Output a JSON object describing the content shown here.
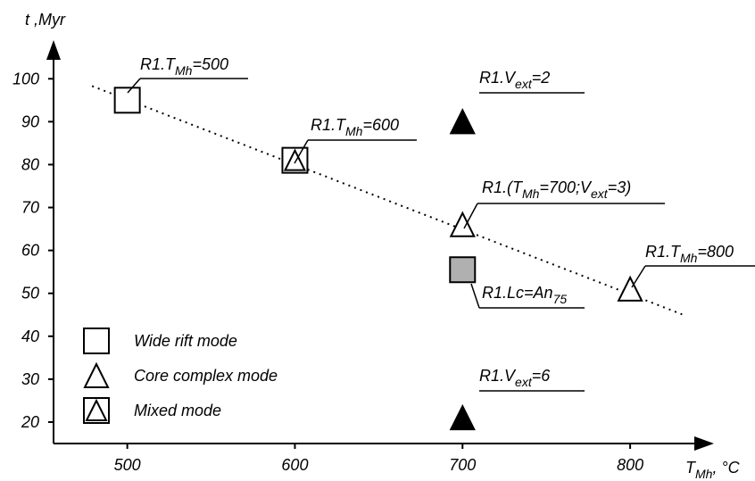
{
  "chart_data": {
    "type": "scatter",
    "y_label": "t ,Myr",
    "x_label": [
      {
        "text": "T"
      },
      {
        "text": "Mh",
        "sub": true
      },
      {
        "text": ", °C"
      }
    ],
    "xlim": [
      456,
      850
    ],
    "ylim": [
      15,
      109
    ],
    "xticks": [
      500,
      600,
      700,
      800
    ],
    "yticks": [
      20,
      30,
      40,
      50,
      60,
      70,
      80,
      90,
      100
    ],
    "series": [
      {
        "name": "Wide rift mode",
        "marker": "square",
        "x": [
          500
        ],
        "y": [
          95
        ]
      },
      {
        "name": "Core complex mode",
        "marker": "triangle",
        "x": [
          700,
          800
        ],
        "y": [
          66,
          51
        ]
      },
      {
        "name": "Mixed mode",
        "marker": "square-triangle",
        "x": [
          600
        ],
        "y": [
          81
        ]
      }
    ],
    "other_points": [
      {
        "marker": "triangle",
        "color": "#000000",
        "x": 700,
        "y": 90
      },
      {
        "marker": "triangle",
        "color": "#000000",
        "x": 700,
        "y": 21
      },
      {
        "marker": "square",
        "color": "#b0b0b0",
        "x": 700,
        "y": 55.5
      }
    ],
    "trendline": {
      "x": [
        479,
        831
      ],
      "y": [
        98.3,
        45.1
      ]
    },
    "annotations": [
      [
        {
          "text": "R1.T"
        },
        {
          "text": "Mh",
          "sub": true
        },
        {
          "text": "=500"
        }
      ],
      [
        {
          "text": "R1.T"
        },
        {
          "text": "Mh",
          "sub": true
        },
        {
          "text": "=600"
        }
      ],
      [
        {
          "text": "R1.V"
        },
        {
          "text": "ext",
          "sub": true
        },
        {
          "text": "=2"
        }
      ],
      [
        {
          "text": "R1.(T"
        },
        {
          "text": "Mh",
          "sub": true
        },
        {
          "text": "=700;V"
        },
        {
          "text": "ext",
          "sub": true
        },
        {
          "text": "=3)"
        }
      ],
      [
        {
          "text": "R1.T"
        },
        {
          "text": "Mh",
          "sub": true
        },
        {
          "text": "=800"
        }
      ],
      [
        {
          "text": "R1.Lc=An"
        },
        {
          "text": "75",
          "sub": true
        }
      ],
      [
        {
          "text": "R1.V"
        },
        {
          "text": "ext",
          "sub": true
        },
        {
          "text": "=6"
        }
      ]
    ]
  }
}
